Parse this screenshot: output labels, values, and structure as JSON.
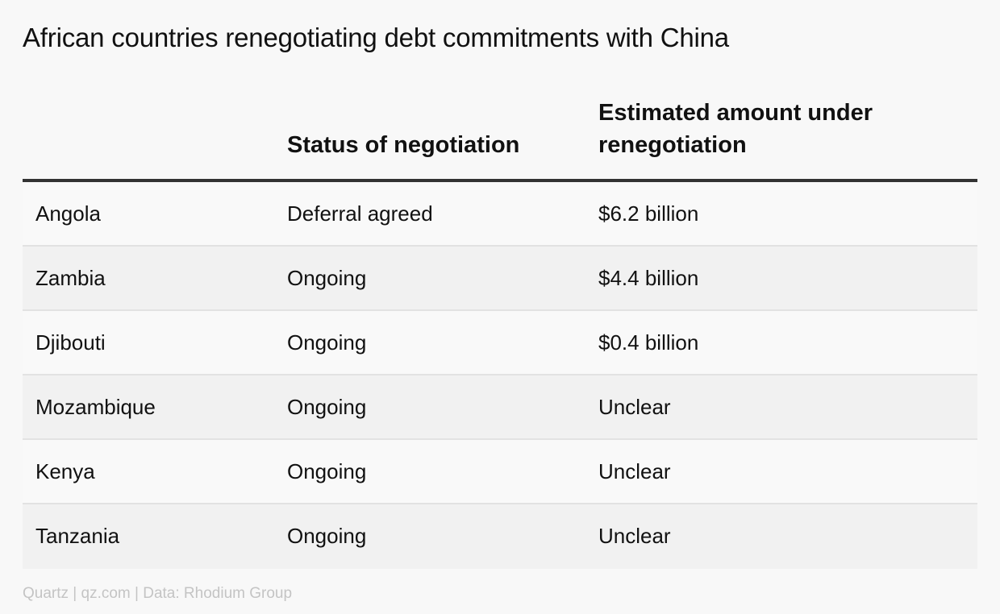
{
  "title": "African countries renegotiating debt commitments with China",
  "chart_data": {
    "type": "table",
    "title": "African countries renegotiating debt commitments with China",
    "columns": [
      "",
      "Status of negotiation",
      "Estimated amount under renegotiation"
    ],
    "rows": [
      {
        "country": "Angola",
        "status": "Deferral agreed",
        "amount": "$6.2 billion"
      },
      {
        "country": "Zambia",
        "status": "Ongoing",
        "amount": "$4.4 billion"
      },
      {
        "country": "Djibouti",
        "status": "Ongoing",
        "amount": "$0.4 billion"
      },
      {
        "country": "Mozambique",
        "status": "Ongoing",
        "amount": "Unclear"
      },
      {
        "country": "Kenya",
        "status": "Ongoing",
        "amount": "Unclear"
      },
      {
        "country": "Tanzania",
        "status": "Ongoing",
        "amount": "Unclear"
      }
    ]
  },
  "footer": "Quartz | qz.com | Data: Rhodium Group",
  "colors": {
    "background": "#f8f8f8",
    "row_alt": "#f1f1f1",
    "header_rule": "#333333",
    "row_rule": "#e2e2e2",
    "footer_text": "#c4c4c4"
  }
}
